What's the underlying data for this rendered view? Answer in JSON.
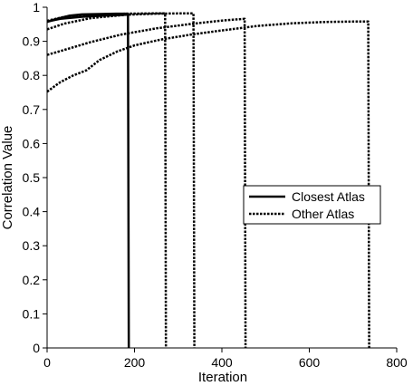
{
  "chart_data": {
    "type": "line",
    "xlabel": "Iteration",
    "ylabel": "Correlation Value",
    "xlim": [
      0,
      800
    ],
    "ylim": [
      0,
      1
    ],
    "xticks": [
      "0",
      "200",
      "400",
      "600",
      "800"
    ],
    "yticks": [
      "0",
      "0.1",
      "0.2",
      "0.3",
      "0.4",
      "0.5",
      "0.6",
      "0.7",
      "0.8",
      "0.9",
      "1"
    ],
    "grid": false,
    "legend": {
      "placement": "center-right",
      "entries": [
        {
          "label": "Closest Atlas",
          "style": "solid"
        },
        {
          "label": "Other Atlas",
          "style": "dotted"
        }
      ]
    },
    "series": [
      {
        "style": "solid",
        "points": [
          [
            0,
            0.957
          ],
          [
            20,
            0.965
          ],
          [
            50,
            0.975
          ],
          [
            80,
            0.979
          ],
          [
            120,
            0.98
          ],
          [
            160,
            0.981
          ],
          [
            185,
            0.981
          ],
          [
            187,
            0
          ]
        ]
      },
      {
        "style": "solid",
        "points": [
          [
            0,
            0.958
          ],
          [
            30,
            0.966
          ],
          [
            80,
            0.972
          ],
          [
            140,
            0.976
          ],
          [
            180,
            0.978
          ],
          [
            185,
            0.978
          ]
        ]
      },
      {
        "style": "dotted",
        "points": [
          [
            0,
            0.96
          ],
          [
            40,
            0.972
          ],
          [
            100,
            0.978
          ],
          [
            180,
            0.981
          ],
          [
            240,
            0.982
          ],
          [
            270,
            0.982
          ],
          [
            272,
            0
          ]
        ]
      },
      {
        "style": "dotted",
        "points": [
          [
            0,
            0.935
          ],
          [
            40,
            0.952
          ],
          [
            100,
            0.968
          ],
          [
            180,
            0.978
          ],
          [
            250,
            0.981
          ],
          [
            300,
            0.982
          ],
          [
            335,
            0.982
          ],
          [
            337,
            0
          ]
        ]
      },
      {
        "style": "dotted",
        "points": [
          [
            0,
            0.86
          ],
          [
            40,
            0.875
          ],
          [
            100,
            0.898
          ],
          [
            170,
            0.92
          ],
          [
            250,
            0.938
          ],
          [
            330,
            0.951
          ],
          [
            400,
            0.961
          ],
          [
            440,
            0.965
          ],
          [
            452,
            0.966
          ],
          [
            454,
            0
          ]
        ]
      },
      {
        "style": "dotted",
        "points": [
          [
            0,
            0.752
          ],
          [
            30,
            0.78
          ],
          [
            60,
            0.8
          ],
          [
            90,
            0.815
          ],
          [
            120,
            0.845
          ],
          [
            160,
            0.87
          ],
          [
            200,
            0.888
          ],
          [
            260,
            0.905
          ],
          [
            330,
            0.92
          ],
          [
            400,
            0.932
          ],
          [
            480,
            0.945
          ],
          [
            560,
            0.953
          ],
          [
            640,
            0.957
          ],
          [
            700,
            0.958
          ],
          [
            735,
            0.958
          ],
          [
            737,
            0
          ]
        ]
      }
    ]
  }
}
